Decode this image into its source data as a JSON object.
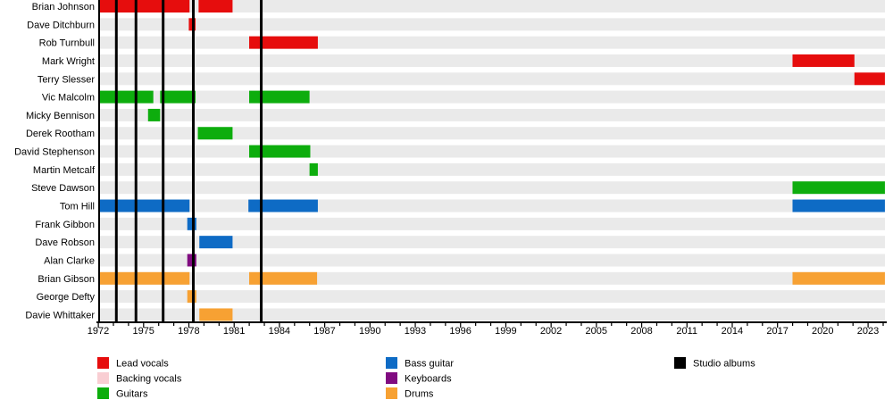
{
  "chart_data": {
    "type": "bar",
    "subtype": "member-timeline-gantt",
    "title": "",
    "x_axis": {
      "start": 1972,
      "end": 2024.12,
      "major_ticks": [
        1972,
        1975,
        1978,
        1981,
        1984,
        1987,
        1990,
        1993,
        1996,
        1999,
        2002,
        2005,
        2008,
        2011,
        2014,
        2017,
        2020,
        2023
      ],
      "minor_tick_every": 1,
      "grid": "off"
    },
    "studio_albums_years": [
      1973.2,
      1974.5,
      1976.3,
      1978.3,
      1982.8
    ],
    "members": [
      {
        "name": "Brian Johnson",
        "role": "lead_vocals",
        "segments": [
          [
            1972.0,
            1978.05
          ],
          [
            1978.65,
            1980.9
          ]
        ]
      },
      {
        "name": "Dave Ditchburn",
        "role": "lead_vocals",
        "segments": [
          [
            1978.0,
            1978.45
          ]
        ]
      },
      {
        "name": "Rob Turnbull",
        "role": "lead_vocals",
        "segments": [
          [
            1982.0,
            1986.55
          ]
        ]
      },
      {
        "name": "Mark Wright",
        "role": "lead_vocals",
        "segments": [
          [
            2018.0,
            2022.1
          ]
        ]
      },
      {
        "name": "Terry Slesser",
        "role": "lead_vocals",
        "segments": [
          [
            2022.1,
            "end"
          ]
        ]
      },
      {
        "name": "Vic Malcolm",
        "role": "guitars",
        "segments": [
          [
            1972.0,
            1975.65
          ],
          [
            1976.1,
            1978.45
          ],
          [
            1982.0,
            1986.0
          ]
        ]
      },
      {
        "name": "Micky Bennison",
        "role": "guitars",
        "segments": [
          [
            1975.3,
            1976.1
          ]
        ]
      },
      {
        "name": "Derek Rootham",
        "role": "guitars",
        "segments": [
          [
            1978.6,
            1980.9
          ]
        ]
      },
      {
        "name": "David Stephenson",
        "role": "guitars",
        "segments": [
          [
            1982.0,
            1986.05
          ]
        ]
      },
      {
        "name": "Martin Metcalf",
        "role": "guitars",
        "segments": [
          [
            1986.0,
            1986.55
          ]
        ]
      },
      {
        "name": "Steve Dawson",
        "role": "guitars",
        "segments": [
          [
            2018.0,
            "end"
          ]
        ]
      },
      {
        "name": "Tom Hill",
        "role": "bass_guitar",
        "segments": [
          [
            1972.0,
            1978.05
          ],
          [
            1981.95,
            1986.55
          ],
          [
            2018.0,
            "end"
          ]
        ]
      },
      {
        "name": "Frank Gibbon",
        "role": "bass_guitar",
        "segments": [
          [
            1977.9,
            1978.5
          ]
        ]
      },
      {
        "name": "Dave Robson",
        "role": "bass_guitar",
        "segments": [
          [
            1978.7,
            1980.9
          ]
        ]
      },
      {
        "name": "Alan Clarke",
        "role": "keyboards",
        "segments": [
          [
            1977.9,
            1978.5
          ]
        ]
      },
      {
        "name": "Brian Gibson",
        "role": "drums",
        "segments": [
          [
            1972.0,
            1978.05
          ],
          [
            1982.0,
            1986.5
          ],
          [
            2018.0,
            "end"
          ]
        ]
      },
      {
        "name": "George Defty",
        "role": "drums",
        "segments": [
          [
            1977.9,
            1978.5
          ]
        ]
      },
      {
        "name": "Davie Whittaker",
        "role": "drums",
        "segments": [
          [
            1978.7,
            1980.9
          ]
        ]
      }
    ],
    "colors": {
      "lead_vocals": "#e60d0d",
      "backing_vocals": "#f9ced3",
      "guitars": "#0dad0d",
      "bass_guitar": "#0e6bc5",
      "keyboards": "#800b80",
      "drums": "#f7a133",
      "studio_albums": "#000000",
      "row_background": "#eaeaea",
      "axis": "#000000"
    }
  },
  "legend": {
    "columns": [
      {
        "items": [
          {
            "label": "Lead vocals",
            "color_key": "lead_vocals"
          },
          {
            "label": "Backing vocals",
            "color_key": "backing_vocals"
          },
          {
            "label": "Guitars",
            "color_key": "guitars"
          }
        ]
      },
      {
        "items": [
          {
            "label": "Bass guitar",
            "color_key": "bass_guitar"
          },
          {
            "label": "Keyboards",
            "color_key": "keyboards"
          },
          {
            "label": "Drums",
            "color_key": "drums"
          }
        ]
      },
      {
        "items": [
          {
            "label": "Studio albums",
            "color_key": "studio_albums"
          }
        ]
      }
    ]
  }
}
